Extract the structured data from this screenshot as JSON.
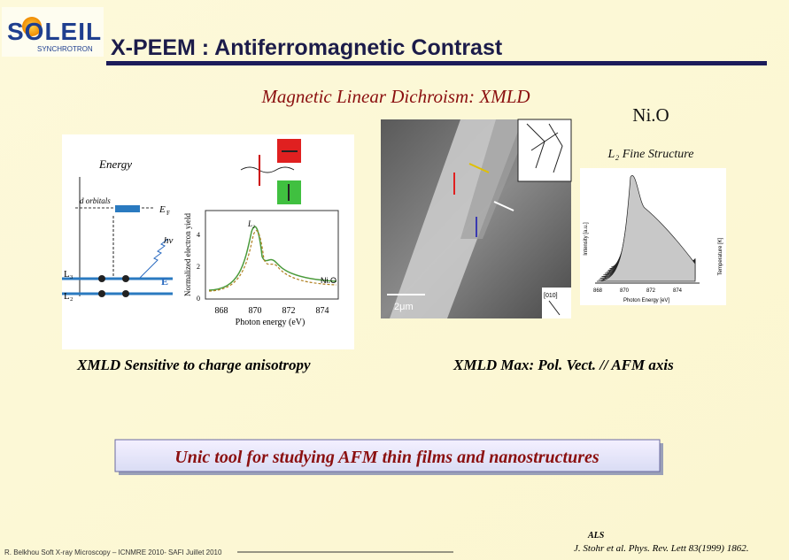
{
  "logo": {
    "name": "SOLEIL",
    "sub": "SYNCHROTRON"
  },
  "header": {
    "title": "X-PEEM : Antiferromagnetic Contrast"
  },
  "subtitle": "Magnetic Linear Dichroism: XMLD",
  "material": "Ni.O",
  "fine_structure": "L₂ Fine Structure",
  "left_figure": {
    "energy": "Energy",
    "orbitals": "d orbitals",
    "ef": "E",
    "ef_sub": "F",
    "hv": "hν",
    "e_vec": "E",
    "l3": "L₃",
    "l2": "L₂",
    "y_label": "Normalized electron yield",
    "x_label": "Photon energy (eV)",
    "x_ticks": [
      "868",
      "870",
      "872",
      "874"
    ],
    "y_ticks": [
      "0",
      "2",
      "4"
    ],
    "peak": "L₂",
    "sample": "Ni.O"
  },
  "center_figure": {
    "scale": "2μm",
    "axis": "[010]"
  },
  "right_figure": {
    "y_label": "Intensity [a.u.]",
    "x_label": "Photon Energy [eV]",
    "x_ticks": [
      "868",
      "870",
      "872",
      "874"
    ],
    "legend": "Temperature [K]"
  },
  "captions": [
    "XMLD Sensitive to charge anisotropy",
    "XMLD Max: Pol. Vect. // AFM axis"
  ],
  "highlight": "Unic tool for studying AFM thin films and nanostructures",
  "footer": {
    "text": "R. Belkhou Soft X-ray Microscopy – ICNMRE 2010- SAFI Juillet 2010",
    "lab": "ALS",
    "reference": "J. Stohr et al. Phys. Rev. Lett 83(1999) 1862."
  }
}
